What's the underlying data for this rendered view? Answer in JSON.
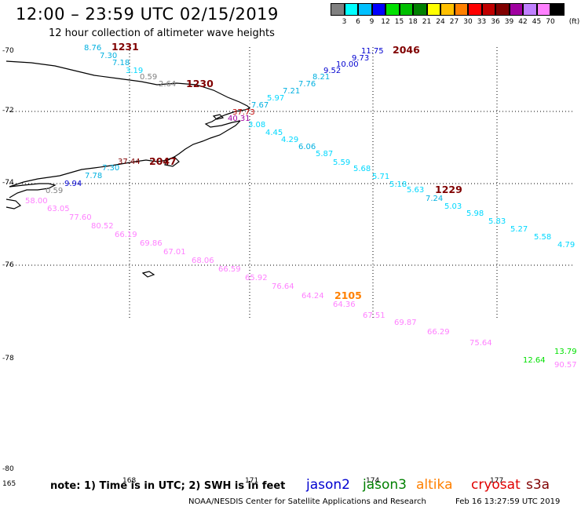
{
  "title": "12:00 – 23:59 UTC 02/15/2019",
  "subtitle": "12 hour collection of altimeter wave heights",
  "scale": {
    "unit_label": "(ft)",
    "colors": [
      "#808080",
      "#00ffff",
      "#00c0ff",
      "#0000ff",
      "#00e000",
      "#00c000",
      "#008000",
      "#ffff00",
      "#ffc000",
      "#ff8000",
      "#ff0000",
      "#c00000",
      "#800000",
      "#a000a0",
      "#c080ff",
      "#ff80ff",
      "#000000"
    ],
    "labels": [
      "3",
      "6",
      "9",
      "12",
      "15",
      "18",
      "21",
      "24",
      "27",
      "30",
      "33",
      "36",
      "39",
      "42",
      "45",
      "70"
    ]
  },
  "lat_labels": [
    "-70",
    "-72",
    "-74",
    "-76",
    "-78",
    "-80"
  ],
  "lon_labels": [
    "165",
    "168",
    "171",
    "174",
    "177"
  ],
  "orbit_tags": [
    {
      "text": "1231",
      "color": "#800000"
    },
    {
      "text": "1230",
      "color": "#800000"
    },
    {
      "text": "2046",
      "color": "#800000"
    },
    {
      "text": "1229",
      "color": "#800000"
    },
    {
      "text": "2047",
      "color": "#800000"
    },
    {
      "text": "2105",
      "color": "#ff8000"
    }
  ],
  "swh_labels": [
    {
      "text": "8.76",
      "color": "#00b0e0"
    },
    {
      "text": "7.30",
      "color": "#00b0e0"
    },
    {
      "text": "7.18",
      "color": "#00b0e0"
    },
    {
      "text": "3.19",
      "color": "#00d8ff"
    },
    {
      "text": "0.59",
      "color": "#808080"
    },
    {
      "text": "2.64",
      "color": "#808080"
    },
    {
      "text": "11.75",
      "color": "#0000d0"
    },
    {
      "text": "9.73",
      "color": "#0000d0"
    },
    {
      "text": "10.00",
      "color": "#0000d0"
    },
    {
      "text": "9.52",
      "color": "#0000d0"
    },
    {
      "text": "8.21",
      "color": "#00b0e0"
    },
    {
      "text": "7.76",
      "color": "#00b0e0"
    },
    {
      "text": "7.21",
      "color": "#00b0e0"
    },
    {
      "text": "5.97",
      "color": "#00d8ff"
    },
    {
      "text": "7.67",
      "color": "#00b0e0"
    },
    {
      "text": "37.73",
      "color": "#c00000"
    },
    {
      "text": "40.31",
      "color": "#a000a0"
    },
    {
      "text": "3.08",
      "color": "#00d8ff"
    },
    {
      "text": "4.45",
      "color": "#00d8ff"
    },
    {
      "text": "4.29",
      "color": "#00d8ff"
    },
    {
      "text": "6.06",
      "color": "#00b0e0"
    },
    {
      "text": "5.87",
      "color": "#00d8ff"
    },
    {
      "text": "5.59",
      "color": "#00d8ff"
    },
    {
      "text": "5.68",
      "color": "#00d8ff"
    },
    {
      "text": "5.71",
      "color": "#00d8ff"
    },
    {
      "text": "5.18",
      "color": "#00d8ff"
    },
    {
      "text": "5.63",
      "color": "#00d8ff"
    },
    {
      "text": "7.24",
      "color": "#00b0e0"
    },
    {
      "text": "5.03",
      "color": "#00d8ff"
    },
    {
      "text": "5.98",
      "color": "#00d8ff"
    },
    {
      "text": "5.83",
      "color": "#00d8ff"
    },
    {
      "text": "5.27",
      "color": "#00d8ff"
    },
    {
      "text": "5.58",
      "color": "#00d8ff"
    },
    {
      "text": "4.79",
      "color": "#00d8ff"
    },
    {
      "text": "37.44",
      "color": "#800000"
    },
    {
      "text": "7.30",
      "color": "#00b0e0"
    },
    {
      "text": "7.78",
      "color": "#00b0e0"
    },
    {
      "text": "9.94",
      "color": "#0000d0"
    },
    {
      "text": "0.59",
      "color": "#808080"
    },
    {
      "text": "58.00",
      "color": "#ff80ff"
    },
    {
      "text": "63.05",
      "color": "#ff80ff"
    },
    {
      "text": "77.60",
      "color": "#ff80ff"
    },
    {
      "text": "80.52",
      "color": "#ff80ff"
    },
    {
      "text": "66.19",
      "color": "#ff80ff"
    },
    {
      "text": "69.86",
      "color": "#ff80ff"
    },
    {
      "text": "67.01",
      "color": "#ff80ff"
    },
    {
      "text": "68.06",
      "color": "#ff80ff"
    },
    {
      "text": "66.59",
      "color": "#ff80ff"
    },
    {
      "text": "65.92",
      "color": "#ff80ff"
    },
    {
      "text": "76.64",
      "color": "#ff80ff"
    },
    {
      "text": "64.24",
      "color": "#ff80ff"
    },
    {
      "text": "64.36",
      "color": "#ff80ff"
    },
    {
      "text": "67.51",
      "color": "#ff80ff"
    },
    {
      "text": "69.87",
      "color": "#ff80ff"
    },
    {
      "text": "66.29",
      "color": "#ff80ff"
    },
    {
      "text": "75.64",
      "color": "#ff80ff"
    },
    {
      "text": "90.57",
      "color": "#ff80ff"
    },
    {
      "text": "12.64",
      "color": "#00e000"
    },
    {
      "text": "13.79",
      "color": "#00e000"
    }
  ],
  "note": "note: 1) Time is in UTC; 2) SWH is in feet",
  "satellites": [
    {
      "name": "jason2",
      "color": "#0000d0"
    },
    {
      "name": "jason3",
      "color": "#008000"
    },
    {
      "name": "altika",
      "color": "#ff8000"
    },
    {
      "name": "cryosat",
      "color": "#e00000"
    },
    {
      "name": "s3a",
      "color": "#800000"
    }
  ],
  "credit": "NOAA/NESDIS Center for Satellite Applications and Research",
  "timestamp": "Feb 16 13:27:59 UTC 2019"
}
